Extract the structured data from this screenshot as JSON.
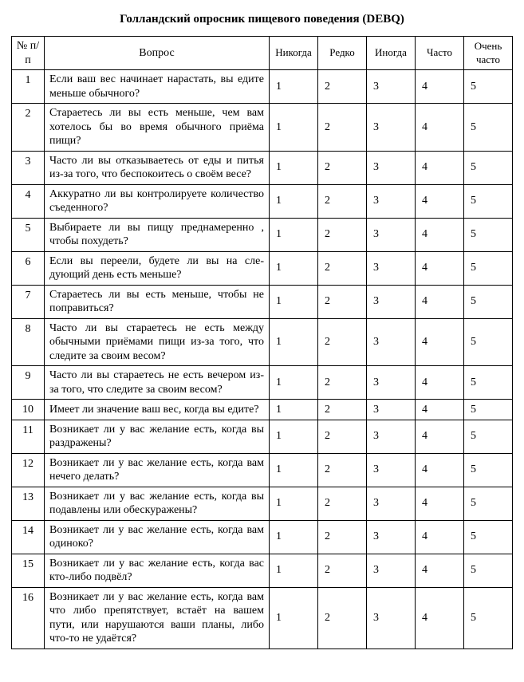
{
  "title": "Голландский опросник пищевого поведения (DEBQ)",
  "table": {
    "headers": {
      "num": "№ п/п",
      "question": "Вопрос",
      "scale": [
        "Никогда",
        "Редко",
        "Иногда",
        "Часто",
        "Очень часто"
      ]
    },
    "scale_values": [
      "1",
      "2",
      "3",
      "4",
      "5"
    ],
    "column_widths": {
      "num": 30,
      "question": "auto",
      "scale": 50
    },
    "rows": [
      {
        "n": "1",
        "q": "Если ваш вес начинает нарастать, вы едите меньше обычного?"
      },
      {
        "n": "2",
        "q": "Стараетесь ли вы есть меньше, чем вам хотелось бы во время обычного приёма пищи?"
      },
      {
        "n": "3",
        "q": "Часто ли вы отказываетесь от еды и питья из-за того, что беспокоитесь о своём весе?"
      },
      {
        "n": "4",
        "q": "Аккуратно ли вы контролируете коли­чество съеденного?"
      },
      {
        "n": "5",
        "q": "Выбираете ли вы пищу преднамеренно , чтобы похудеть?"
      },
      {
        "n": "6",
        "q": "Если вы переели, будете ли вы на сле­дующий день есть меньше?"
      },
      {
        "n": "7",
        "q": "Стараетесь ли вы есть меньше, чтобы не поправиться?"
      },
      {
        "n": "8",
        "q": "Часто ли вы стараетесь не есть между обычными приёмами пищи из-за того, что следите за своим весом?"
      },
      {
        "n": "9",
        "q": "Часто ли вы стараетесь не есть вечером из-за того, что следите за своим весом?"
      },
      {
        "n": "10",
        "q": "Имеет ли значение ваш вес, когда вы едите?"
      },
      {
        "n": "11",
        "q": "Возникает ли у вас желание есть, когда вы раздражены?"
      },
      {
        "n": "12",
        "q": "Возникает ли у вас желание есть, когда вам нечего делать?"
      },
      {
        "n": "13",
        "q": "Возникает ли у вас желание есть, когда вы подавлены или обескуражены?"
      },
      {
        "n": "14",
        "q": "Возникает ли у вас желание есть, когда вам одиноко?"
      },
      {
        "n": "15",
        "q": "Возникает ли у вас желание есть, когда вас кто-либо подвёл?"
      },
      {
        "n": "16",
        "q": "Возникает ли у вас желание есть, когда вам что либо препятствует, встаёт на вашем пути, или нарушаются ваши планы, либо что-то не удаётся?"
      }
    ]
  },
  "colors": {
    "text": "#000000",
    "background": "#ffffff",
    "border": "#000000"
  },
  "typography": {
    "font_family": "Times New Roman",
    "title_fontsize": 15,
    "body_fontsize": 14
  }
}
